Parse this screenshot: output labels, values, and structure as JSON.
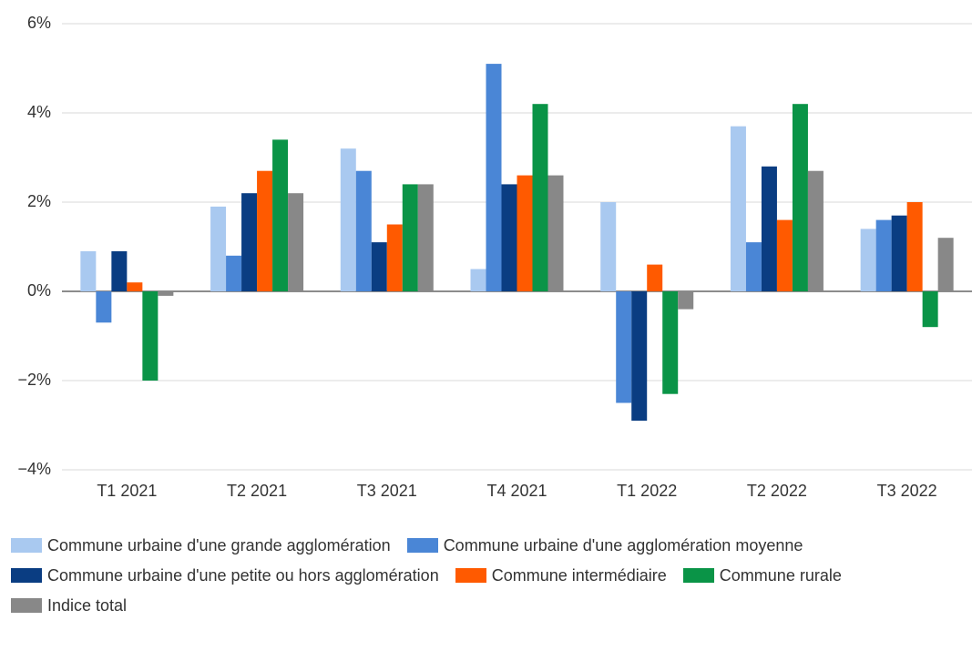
{
  "chart_data": {
    "type": "bar",
    "categories": [
      "T1 2021",
      "T2 2021",
      "T3 2021",
      "T4 2021",
      "T1 2022",
      "T2 2022",
      "T3 2022"
    ],
    "series": [
      {
        "name": "Commune urbaine d'une grande agglomération",
        "color": "#a9c9f0",
        "values": [
          0.9,
          1.9,
          3.2,
          0.5,
          2.0,
          3.7,
          1.4
        ]
      },
      {
        "name": "Commune urbaine d'une agglomération moyenne",
        "color": "#4a86d6",
        "values": [
          -0.7,
          0.8,
          2.7,
          5.1,
          -2.5,
          1.1,
          1.6
        ]
      },
      {
        "name": "Commune urbaine d'une petite ou hors agglomération",
        "color": "#0a3d82",
        "values": [
          0.9,
          2.2,
          1.1,
          2.4,
          -2.9,
          2.8,
          1.7
        ]
      },
      {
        "name": "Commune intermédiaire",
        "color": "#ff5a00",
        "values": [
          0.2,
          2.7,
          1.5,
          2.6,
          0.6,
          1.6,
          2.0
        ]
      },
      {
        "name": "Commune rurale",
        "color": "#0a9447",
        "values": [
          -2.0,
          3.4,
          2.4,
          4.2,
          -2.3,
          4.2,
          -0.8
        ]
      },
      {
        "name": "Indice total",
        "color": "#888888",
        "values": [
          -0.1,
          2.2,
          2.4,
          2.6,
          -0.4,
          2.7,
          1.2
        ]
      }
    ],
    "ylim": [
      -4,
      6
    ],
    "yticks": [
      {
        "value": -4,
        "label": "−4%"
      },
      {
        "value": -2,
        "label": "−2%"
      },
      {
        "value": 0,
        "label": "0%"
      },
      {
        "value": 2,
        "label": "2%"
      },
      {
        "value": 4,
        "label": "4%"
      },
      {
        "value": 6,
        "label": "6%"
      }
    ],
    "grid": true
  }
}
